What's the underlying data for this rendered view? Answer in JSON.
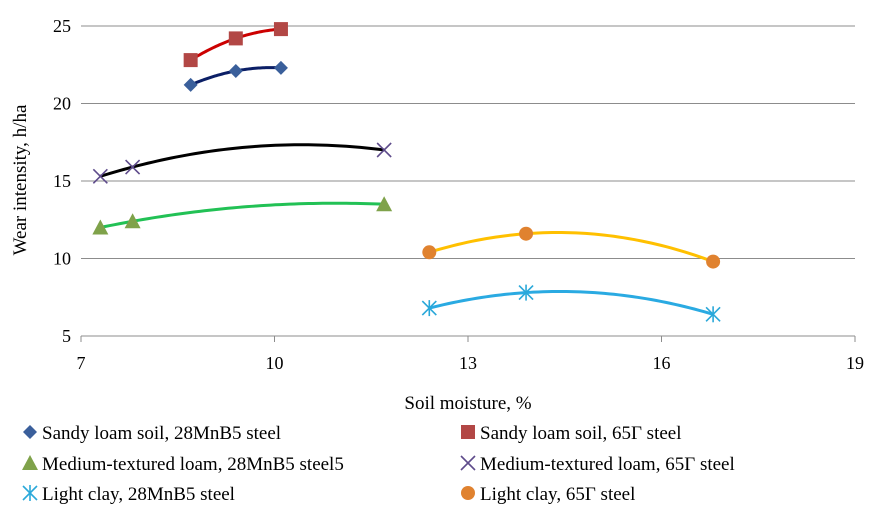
{
  "chart_data": {
    "type": "scatter",
    "title": "",
    "xlabel": "Soil moisture, %",
    "ylabel": "Wear intensity, h/ha",
    "xlim": [
      7,
      19
    ],
    "ylim": [
      5,
      25
    ],
    "x_ticks": [
      7,
      10,
      13,
      16,
      19
    ],
    "y_ticks": [
      5,
      10,
      15,
      20,
      25
    ],
    "grid": "horizontal",
    "legend_position": "bottom",
    "series": [
      {
        "name": "Sandy loam soil, 28MnB5 steel",
        "marker": "diamond",
        "marker_color": "#3A5F9B",
        "trend_color": "#0B1F66",
        "x": [
          8.7,
          9.4,
          10.1
        ],
        "y": [
          21.2,
          22.1,
          22.3
        ]
      },
      {
        "name": "Sandy loam soil, 65Γ steel",
        "marker": "square",
        "marker_color": "#B24745",
        "trend_color": "#CC0000",
        "x": [
          8.7,
          9.4,
          10.1
        ],
        "y": [
          22.8,
          24.2,
          24.8
        ]
      },
      {
        "name": "Medium-textured loam, 28MnB5 steel5",
        "marker": "triangle",
        "marker_color": "#7FA24A",
        "trend_color": "#22C155",
        "x": [
          7.3,
          7.8,
          11.7
        ],
        "y": [
          12.0,
          12.4,
          13.5
        ]
      },
      {
        "name": "Medium-textured loam, 65Γ steel",
        "marker": "x",
        "marker_color": "#5E4B8B",
        "trend_color": "#000000",
        "x": [
          7.3,
          7.8,
          11.7
        ],
        "y": [
          15.3,
          15.9,
          17.0
        ]
      },
      {
        "name": "Light clay, 28MnB5 steel",
        "marker": "asterisk",
        "marker_color": "#2AA8D9",
        "trend_color": "#2AAAE2",
        "x": [
          12.4,
          13.9,
          16.8
        ],
        "y": [
          6.8,
          7.8,
          6.4
        ]
      },
      {
        "name": "Light clay, 65Γ steel",
        "marker": "circle",
        "marker_color": "#E0822F",
        "trend_color": "#FFC000",
        "x": [
          12.4,
          13.9,
          16.8
        ],
        "y": [
          10.4,
          11.6,
          9.8
        ]
      }
    ]
  }
}
